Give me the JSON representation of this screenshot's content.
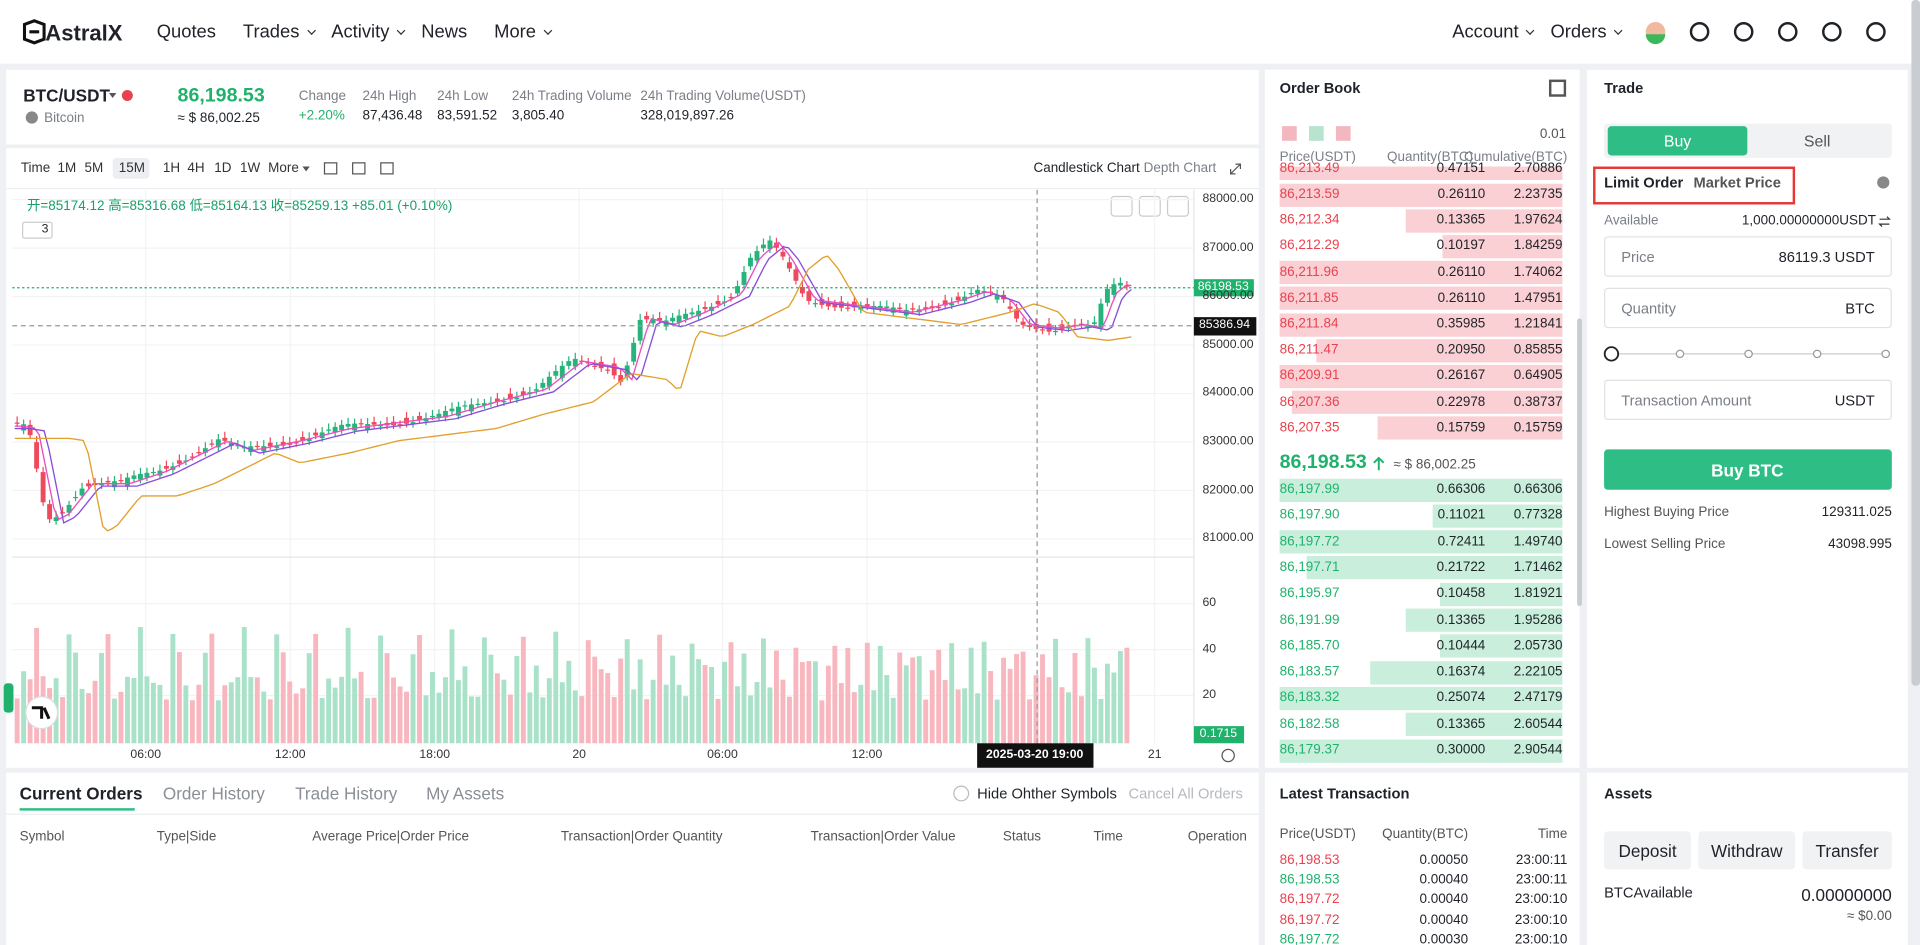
{
  "nav": {
    "logo": "AstralX",
    "left": [
      {
        "label": "Quotes",
        "dropdown": false
      },
      {
        "label": "Trades",
        "dropdown": true
      },
      {
        "label": "Activity",
        "dropdown": true
      },
      {
        "label": "News",
        "dropdown": false
      },
      {
        "label": "More",
        "dropdown": true
      }
    ],
    "right": [
      {
        "label": "Account",
        "dropdown": true
      },
      {
        "label": "Orders",
        "dropdown": true
      }
    ]
  },
  "ticker": {
    "symbol": "BTC/USDT",
    "name": "Bitcoin",
    "price": "86,198.53",
    "price_usd": "≈ $ 86,002.25",
    "stats": [
      {
        "label": "Change",
        "value": "+2.20%"
      },
      {
        "label": "24h High",
        "value": "87,436.48"
      },
      {
        "label": "24h Low",
        "value": "83,591.52"
      },
      {
        "label": "24h Trading Volume",
        "value": "3,805.40"
      },
      {
        "label": "24h Trading Volume(USDT)",
        "value": "328,019,897.26"
      }
    ]
  },
  "chart": {
    "intervals": [
      "Time",
      "1M",
      "5M",
      "15M",
      "1H",
      "4H",
      "1D",
      "1W",
      "More"
    ],
    "active_interval": 3,
    "views": [
      "Candlestick Chart",
      "Depth Chart"
    ],
    "ohlc": "开=85174.12 高=85316.68 低=85164.13 收=85259.13 +85.01 (+0.10%)",
    "indicator_count": "3",
    "price_ticks": [
      "88000.00",
      "87000.00",
      "86000.00",
      "85000.00",
      "84000.00",
      "83000.00",
      "82000.00",
      "81000.00"
    ],
    "last_price_tag": "86198.53",
    "crosshair_price": "85386.94",
    "volume_ticks": [
      "60",
      "40",
      "20"
    ],
    "volume_tag": "0.1715",
    "time_ticks": [
      "06:00",
      "12:00",
      "18:00",
      "20",
      "06:00",
      "12:00",
      "21"
    ],
    "crosshair_time": "2025-03-20  19:00"
  },
  "order_book": {
    "title": "Order Book",
    "precision": "0.01",
    "columns": [
      "Price(USDT)",
      "Quantity(BTC)",
      "Cumulative(BTC)"
    ],
    "asks": [
      [
        "86,213.49",
        "0.47151",
        "2.70886"
      ],
      [
        "86,213.59",
        "0.26110",
        "2.23735"
      ],
      [
        "86,212.34",
        "0.13365",
        "1.97624"
      ],
      [
        "86,212.29",
        "0.10197",
        "1.84259"
      ],
      [
        "86,211.96",
        "0.26110",
        "1.74062"
      ],
      [
        "86,211.85",
        "0.26110",
        "1.47951"
      ],
      [
        "86,211.84",
        "0.35985",
        "1.21841"
      ],
      [
        "86,211.47",
        "0.20950",
        "0.85855"
      ],
      [
        "86,209.91",
        "0.26167",
        "0.64905"
      ],
      [
        "86,207.36",
        "0.22978",
        "0.38737"
      ],
      [
        "86,207.35",
        "0.15759",
        "0.15759"
      ]
    ],
    "mid_price": "86,198.53",
    "mid_usd": "≈ $ 86,002.25",
    "bids": [
      [
        "86,197.99",
        "0.66306",
        "0.66306"
      ],
      [
        "86,197.90",
        "0.11021",
        "0.77328"
      ],
      [
        "86,197.72",
        "0.72411",
        "1.49740"
      ],
      [
        "86,197.71",
        "0.21722",
        "1.71462"
      ],
      [
        "86,195.97",
        "0.10458",
        "1.81921"
      ],
      [
        "86,191.99",
        "0.13365",
        "1.95286"
      ],
      [
        "86,185.70",
        "0.10444",
        "2.05730"
      ],
      [
        "86,183.57",
        "0.16374",
        "2.22105"
      ],
      [
        "86,183.32",
        "0.25074",
        "2.47179"
      ],
      [
        "86,182.58",
        "0.13365",
        "2.60544"
      ],
      [
        "86,179.37",
        "0.30000",
        "2.90544"
      ]
    ]
  },
  "trade": {
    "title": "Trade",
    "sides": [
      "Buy",
      "Sell"
    ],
    "order_types": [
      "Limit Order",
      "Market Price"
    ],
    "available_label": "Available",
    "available": "1,000.00000000USDT",
    "price_label": "Price",
    "price_value": "86119.3 USDT",
    "quantity_label": "Quantity",
    "quantity_unit": "BTC",
    "amount_label": "Transaction Amount",
    "amount_unit": "USDT",
    "button": "Buy BTC",
    "highest_label": "Highest Buying Price",
    "highest": "129311.025",
    "lowest_label": "Lowest Selling Price",
    "lowest": "43098.995"
  },
  "orders": {
    "tabs": [
      "Current Orders",
      "Order History",
      "Trade History",
      "My Assets"
    ],
    "hide_other": "Hide Ohther Symbols",
    "cancel_all": "Cancel All Orders",
    "columns": [
      "Symbol",
      "Type|Side",
      "Average Price|Order Price",
      "Transaction|Order Quantity",
      "Transaction|Order Value",
      "Status",
      "Time",
      "Operation"
    ]
  },
  "latest": {
    "title": "Latest Transaction",
    "columns": [
      "Price(USDT)",
      "Quantity(BTC)",
      "Time"
    ],
    "rows": [
      {
        "price": "86,198.53",
        "qty": "0.00050",
        "time": "23:00:11",
        "color": "#e8424f"
      },
      {
        "price": "86,198.53",
        "qty": "0.00040",
        "time": "23:00:11",
        "color": "#20b26c"
      },
      {
        "price": "86,197.72",
        "qty": "0.00040",
        "time": "23:00:10",
        "color": "#e8424f"
      },
      {
        "price": "86,197.72",
        "qty": "0.00040",
        "time": "23:00:10",
        "color": "#e8424f"
      },
      {
        "price": "86,197.72",
        "qty": "0.00030",
        "time": "23:00:10",
        "color": "#20b26c"
      }
    ]
  },
  "assets": {
    "title": "Assets",
    "buttons": [
      "Deposit",
      "Withdraw",
      "Transfer"
    ],
    "label": "BTCAvailable",
    "amount": "0.00000000",
    "usd": "≈ $0.00"
  }
}
